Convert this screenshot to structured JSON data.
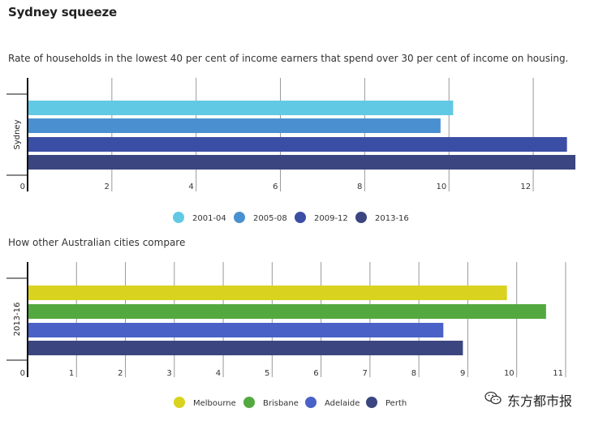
{
  "title": "Sydney squeeze",
  "subtitle": "Rate of households in the lowest 40 per cent of income earners that spend over 30 per cent of income on housing.",
  "subtitle2": "How other Australian cities compare",
  "watermark": "东方都市报",
  "chart_data": [
    {
      "type": "bar",
      "orientation": "horizontal",
      "categories": [
        "Sydney"
      ],
      "series": [
        {
          "name": "2001-04",
          "values": [
            10.1
          ],
          "color": "#62c9e4"
        },
        {
          "name": "2005-08",
          "values": [
            9.8
          ],
          "color": "#4a90d0"
        },
        {
          "name": "2009-12",
          "values": [
            12.8
          ],
          "color": "#3b4ea6"
        },
        {
          "name": "2013-16",
          "values": [
            13.0
          ],
          "color": "#3b4680"
        }
      ],
      "xticks": [
        "0",
        "2",
        "4",
        "6",
        "8",
        "10",
        "12"
      ],
      "xlim": [
        0,
        13
      ],
      "grid": true,
      "legend": "bottom"
    },
    {
      "type": "bar",
      "orientation": "horizontal",
      "categories": [
        "2013-16"
      ],
      "series": [
        {
          "name": "Melbourne",
          "values": [
            9.8
          ],
          "color": "#d9d21e"
        },
        {
          "name": "Brisbane",
          "values": [
            10.6
          ],
          "color": "#53a93f"
        },
        {
          "name": "Adelaide",
          "values": [
            8.5
          ],
          "color": "#4a61c7"
        },
        {
          "name": "Perth",
          "values": [
            8.9
          ],
          "color": "#3b4680"
        }
      ],
      "xticks": [
        "0",
        "1",
        "2",
        "3",
        "4",
        "5",
        "6",
        "7",
        "8",
        "9",
        "10",
        "11"
      ],
      "xlim": [
        0,
        11.2
      ],
      "grid": true,
      "legend": "bottom"
    }
  ]
}
